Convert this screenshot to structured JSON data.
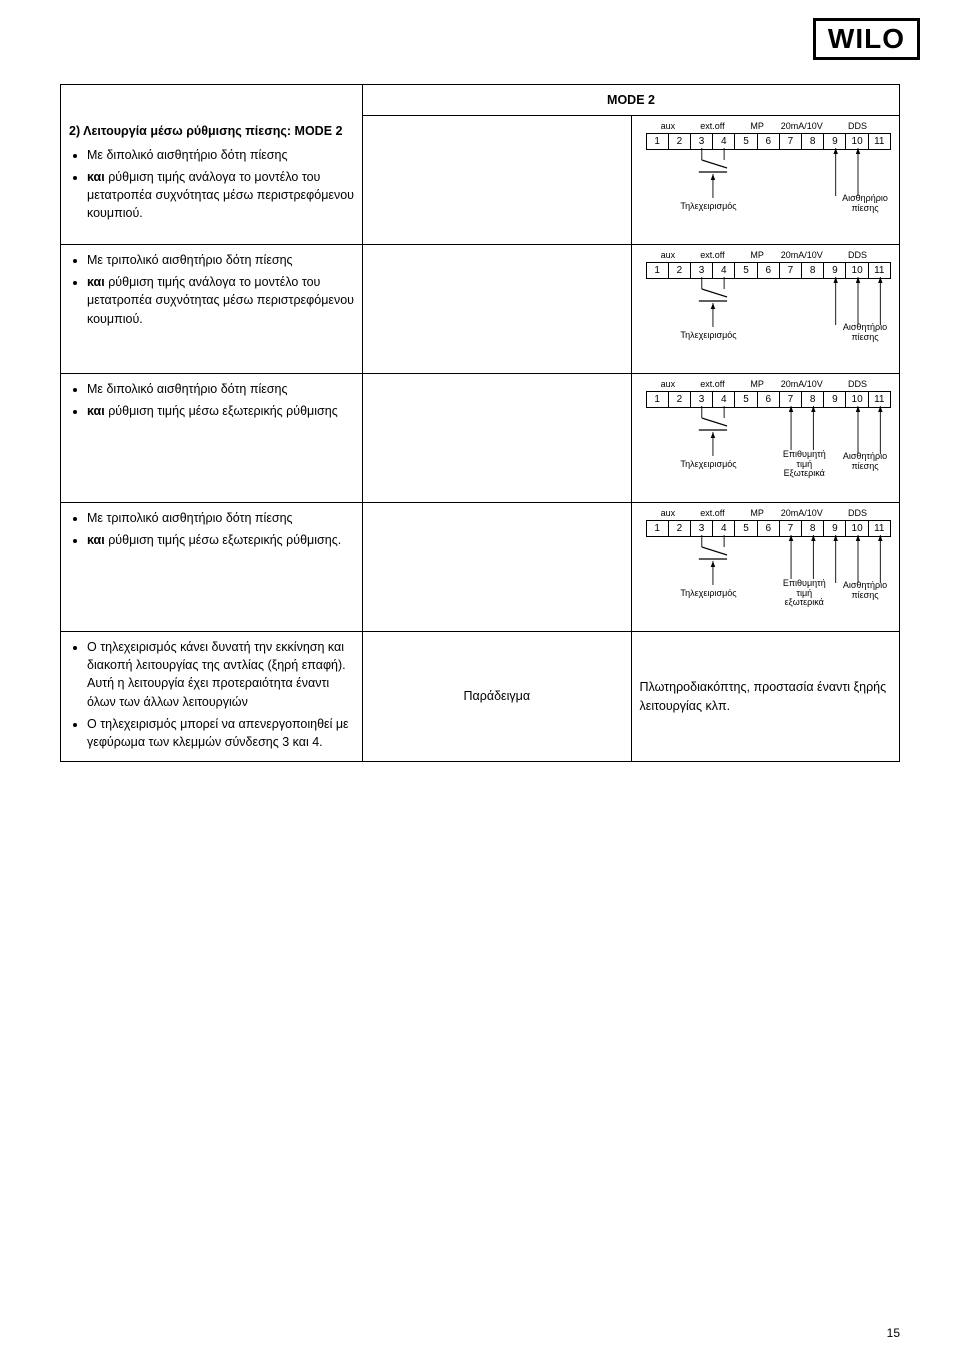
{
  "logo": "WILO",
  "page_number": "15",
  "header_mid": "MODE 2",
  "rows": [
    {
      "heading": "2) Λειτουργία μέσω ρύθμισης πίεσης: MODE 2",
      "bullets": [
        "Με διπολικό αισθητήριο δότη πίεσης",
        "<b>και</b> ρύθμιση τιμής ανάλογα το μοντέλο του μετατροπέα συχνότητας μέσω περιστρεφόμενου κουμπιού."
      ],
      "diagram": {
        "sensor_wires": [
          9,
          10
        ],
        "sensor_label": "Αισθηρήριο πίεσης",
        "extra": null
      }
    },
    {
      "bullets": [
        "Με τριπολικό αισθητήριο δότη πίεσης",
        "<b>και</b> ρύθμιση τιμής ανάλογα το μοντέλο του μετατροπέα συχνότητας μέσω περιστρεφόμενου κουμπιού."
      ],
      "diagram": {
        "sensor_wires": [
          9,
          10,
          11
        ],
        "sensor_label": "Αισθητήριο πίεσης",
        "extra": null
      }
    },
    {
      "bullets": [
        "Με διπολικό αισθητήριο δότη πίεσης",
        "<b>και</b> ρύθμιση τιμής μέσω εξωτερικής ρύθμισης"
      ],
      "diagram": {
        "sensor_wires": [
          10,
          11
        ],
        "sensor_label": "Αισθητήριο πίεσης",
        "extra": {
          "wires": [
            7,
            8
          ],
          "label": "Επιθυμητή τιμή Εξωτερικά"
        }
      }
    },
    {
      "bullets": [
        "Με τριπολικό αισθητήριο δότη πίεσης",
        "<b>και</b> ρύθμιση τιμής μέσω εξωτερικής ρύθμισης."
      ],
      "diagram": {
        "sensor_wires": [
          9,
          10,
          11
        ],
        "sensor_label": "Αισθητήριο πίεσης",
        "extra": {
          "wires": [
            7,
            8
          ],
          "label": "Επιθυμητή τιμή εξωτερικά"
        }
      }
    }
  ],
  "row5": {
    "bullets": [
      "Ο τηλεχειρισμός κάνει δυνατή την εκκίνηση και διακοπή λειτουργίας της αντλίας (ξηρή επαφή). Αυτή η λειτουργία έχει προτεραιότητα έναντι όλων των άλλων λειτουργιών",
      "Ο τηλεχειρισμός μπορεί να απενεργοποιηθεί με γεφύρωμα των κλεμμών σύνδεσης 3 και 4."
    ],
    "mid": "Παράδειγμα",
    "right": "Πλωτηροδιακόπτης, προστασία έναντι ξηρής λειτουργίας κλπ."
  },
  "terminals": {
    "labels": [
      "aux",
      "ext.off",
      "MP",
      "20mA/10V",
      "DDS"
    ],
    "label_widths": [
      2,
      2,
      2,
      2,
      3
    ],
    "numbers": [
      "1",
      "2",
      "3",
      "4",
      "5",
      "6",
      "7",
      "8",
      "9",
      "10",
      "11"
    ],
    "remote_label": "Τηλεχειρισμός"
  },
  "colors": {
    "line": "#000000"
  }
}
